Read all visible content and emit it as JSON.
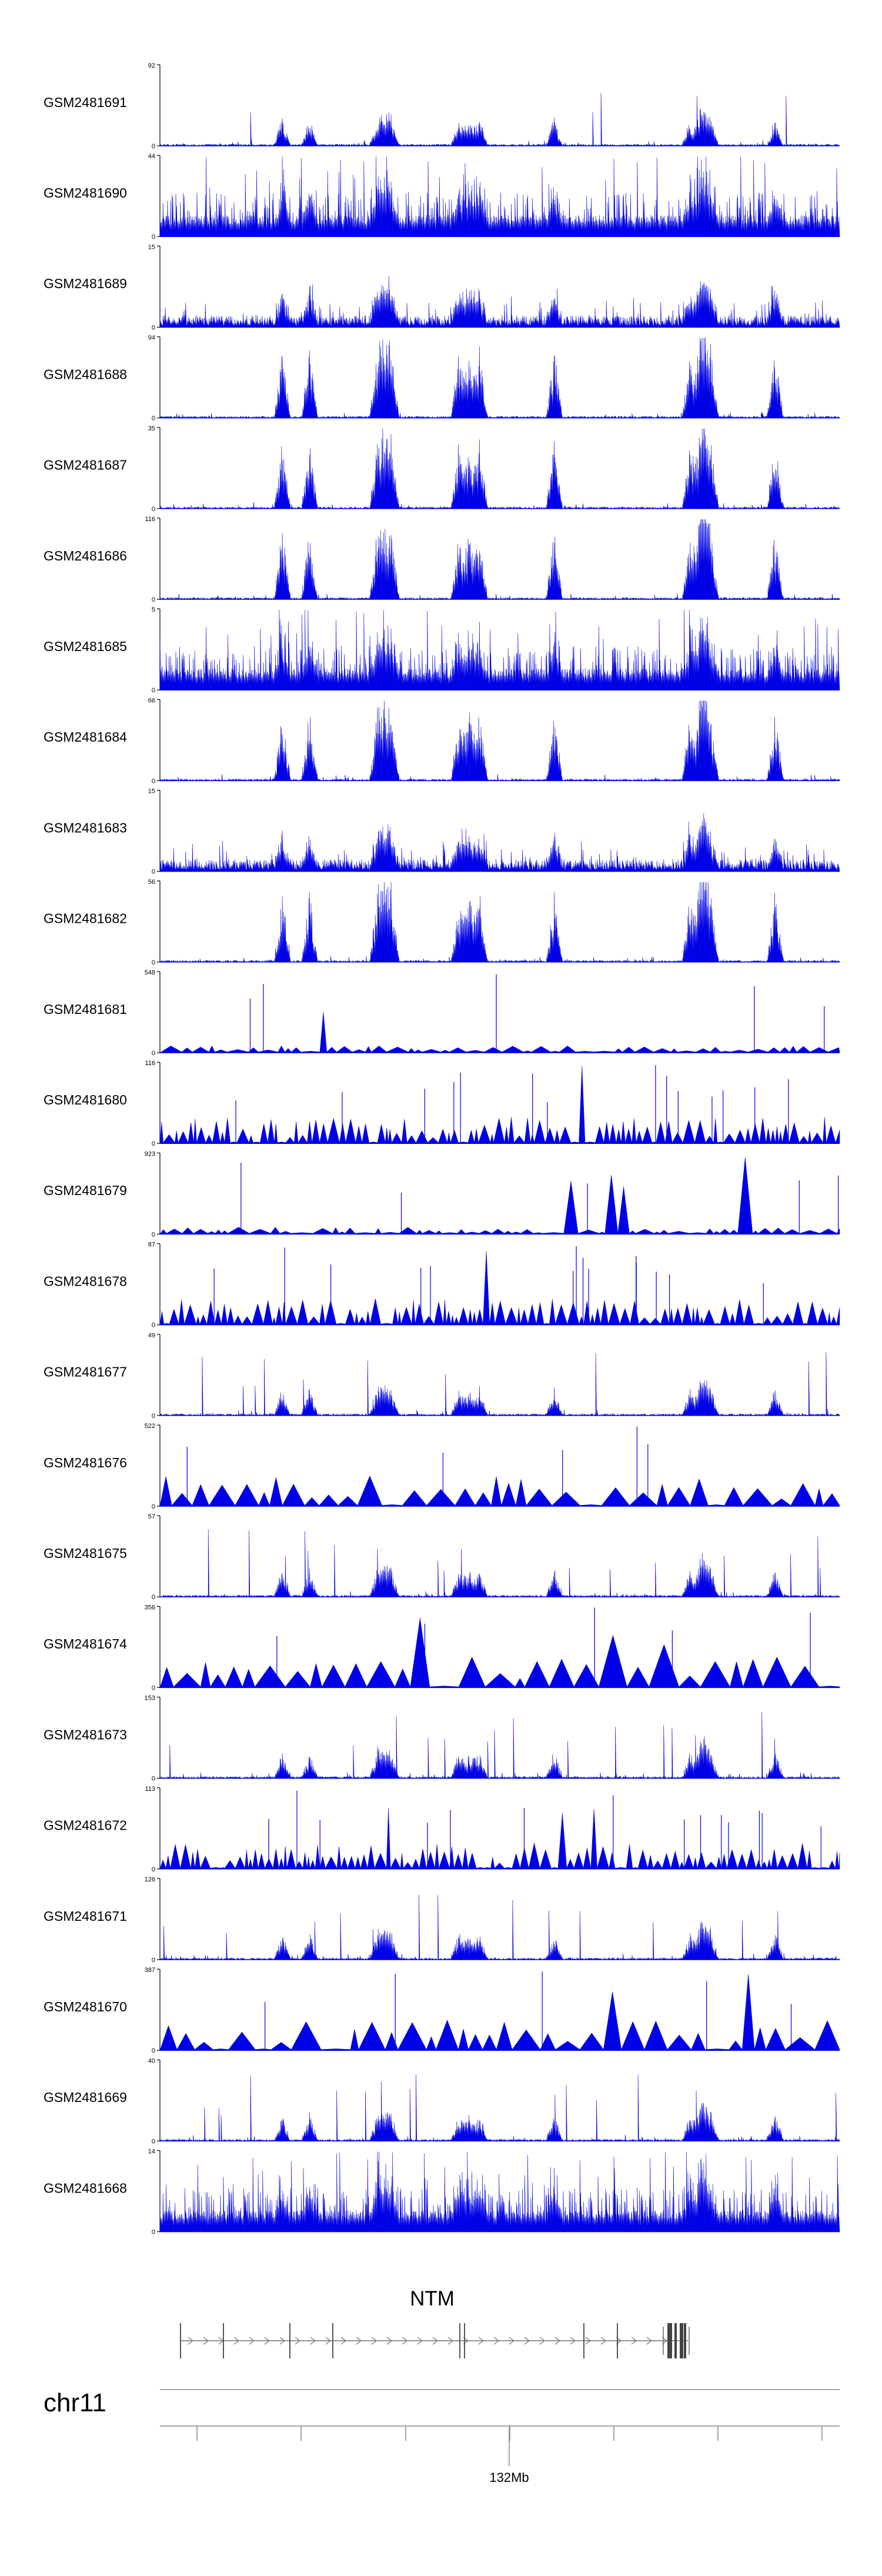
{
  "chart_data": {
    "type": "area",
    "style": "genome-browser coverage tracks (bigWig-like), filled to zero",
    "color": "#0000e6",
    "axis_color": "#000000",
    "tracks": [
      {
        "name": "GSM2481691",
        "max": 92,
        "min": 0,
        "pattern": "sparse-peaks"
      },
      {
        "name": "GSM2481690",
        "max": 44,
        "min": 0,
        "pattern": "dense-noise"
      },
      {
        "name": "GSM2481689",
        "max": 15,
        "min": 0,
        "pattern": "noisy-peaks"
      },
      {
        "name": "GSM2481688",
        "max": 94,
        "min": 0,
        "pattern": "strong-peaks"
      },
      {
        "name": "GSM2481687",
        "max": 35,
        "min": 0,
        "pattern": "strong-peaks"
      },
      {
        "name": "GSM2481686",
        "max": 116,
        "min": 0,
        "pattern": "strong-peaks"
      },
      {
        "name": "GSM2481685",
        "max": 5,
        "min": 0,
        "pattern": "dense-noise"
      },
      {
        "name": "GSM2481684",
        "max": 66,
        "min": 0,
        "pattern": "strong-peaks"
      },
      {
        "name": "GSM2481683",
        "max": 15,
        "min": 0,
        "pattern": "noisy-peaks"
      },
      {
        "name": "GSM2481682",
        "max": 56,
        "min": 0,
        "pattern": "strong-peaks"
      },
      {
        "name": "GSM2481681",
        "max": 548,
        "min": 0,
        "pattern": "triangles-low"
      },
      {
        "name": "GSM2481680",
        "max": 116,
        "min": 0,
        "pattern": "triangles-dense"
      },
      {
        "name": "GSM2481679",
        "max": 923,
        "min": 0,
        "pattern": "triangles-low"
      },
      {
        "name": "GSM2481678",
        "max": 87,
        "min": 0,
        "pattern": "triangles-dense"
      },
      {
        "name": "GSM2481677",
        "max": 49,
        "min": 0,
        "pattern": "sparse-peaks"
      },
      {
        "name": "GSM2481676",
        "max": 522,
        "min": 0,
        "pattern": "triangles-large"
      },
      {
        "name": "GSM2481675",
        "max": 57,
        "min": 0,
        "pattern": "sparse-peaks"
      },
      {
        "name": "GSM2481674",
        "max": 356,
        "min": 0,
        "pattern": "triangles-large"
      },
      {
        "name": "GSM2481673",
        "max": 153,
        "min": 0,
        "pattern": "sparse-peaks"
      },
      {
        "name": "GSM2481672",
        "max": 113,
        "min": 0,
        "pattern": "triangles-dense"
      },
      {
        "name": "GSM2481671",
        "max": 126,
        "min": 0,
        "pattern": "sparse-peaks"
      },
      {
        "name": "GSM2481670",
        "max": 387,
        "min": 0,
        "pattern": "triangles-large"
      },
      {
        "name": "GSM2481669",
        "max": 40,
        "min": 0,
        "pattern": "sparse-peaks"
      },
      {
        "name": "GSM2481668",
        "max": 14,
        "min": 0,
        "pattern": "dense-noise"
      }
    ],
    "gene": {
      "name": "NTM",
      "strand": "+"
    },
    "chromosome": "chr11",
    "ruler_label": "132Mb"
  }
}
